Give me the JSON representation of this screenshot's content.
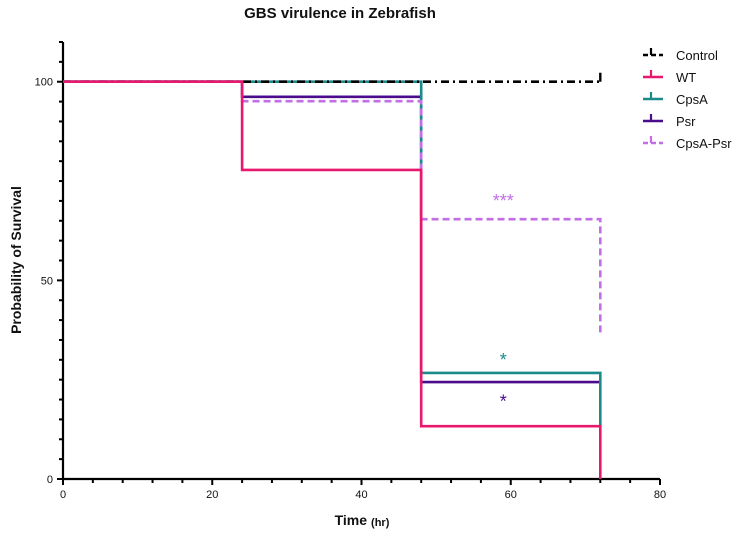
{
  "chart_data": {
    "type": "line",
    "subtype": "kaplan-meier survival",
    "title": "GBS virulence in Zebrafish",
    "xlabel": "Time",
    "xlabel_unit": "(hr)",
    "ylabel": "Probability of Survival",
    "xlim": [
      0,
      80
    ],
    "ylim": [
      0,
      110
    ],
    "x_ticks": [
      0,
      20,
      40,
      60,
      80
    ],
    "y_ticks": [
      0,
      50,
      100
    ],
    "grid": false,
    "legend_position": "top-right",
    "series": [
      {
        "name": "Control",
        "color": "#000000",
        "style": "dashdot",
        "steps": [
          [
            0,
            100
          ],
          [
            72,
            100
          ]
        ],
        "censored_end": true
      },
      {
        "name": "WT",
        "color": "#e8186d",
        "style": "solid",
        "steps": [
          [
            0,
            100
          ],
          [
            24,
            77.8
          ],
          [
            48,
            13.3
          ],
          [
            72,
            0
          ]
        ],
        "censored_end": false
      },
      {
        "name": "CpsA",
        "color": "#1a8a8a",
        "style": "solid",
        "steps": [
          [
            0,
            100
          ],
          [
            48,
            26.7
          ],
          [
            72,
            13.3
          ]
        ],
        "censored_end": false
      },
      {
        "name": "Psr",
        "color": "#4b0c8c",
        "style": "solid",
        "steps": [
          [
            0,
            100
          ],
          [
            24,
            96.2
          ],
          [
            48,
            24.4
          ],
          [
            72,
            24.4
          ]
        ],
        "censored_end": true
      },
      {
        "name": "CpsA-Psr",
        "color": "#c26ee6",
        "style": "dashed",
        "steps": [
          [
            0,
            100
          ],
          [
            24,
            95.1
          ],
          [
            48,
            65.4
          ],
          [
            72,
            36.5
          ]
        ],
        "censored_end": false
      }
    ],
    "annotations": [
      {
        "text": "***",
        "x": 59,
        "y": 68.5,
        "color": "#c26ee6"
      },
      {
        "text": "*",
        "x": 59,
        "y": 28.4,
        "color": "#1a8a8a"
      },
      {
        "text": "*",
        "x": 59,
        "y": 18.0,
        "color": "#4b0c8c"
      }
    ]
  }
}
